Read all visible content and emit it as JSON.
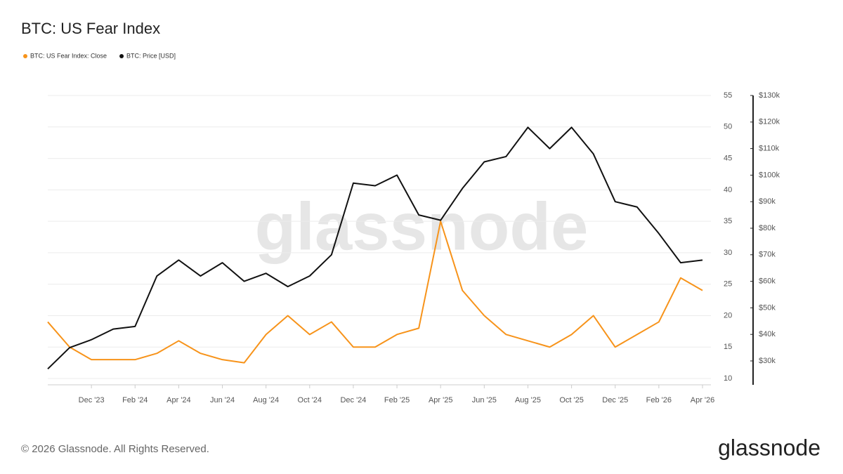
{
  "chart_data": {
    "type": "line",
    "title": "BTC: US Fear Index",
    "watermark": "glassnode",
    "footer": "© 2026 Glassnode. All Rights Reserved.",
    "logo": "glassnode",
    "x": [
      "2023-10",
      "2023-11",
      "2023-12",
      "2024-01",
      "2024-02",
      "2024-03",
      "2024-04",
      "2024-05",
      "2024-06",
      "2024-07",
      "2024-08",
      "2024-09",
      "2024-10",
      "2024-11",
      "2024-12",
      "2025-01",
      "2025-02",
      "2025-03",
      "2025-04",
      "2025-05",
      "2025-06",
      "2025-07",
      "2025-08",
      "2025-09",
      "2025-10",
      "2025-11",
      "2025-12",
      "2026-01",
      "2026-02",
      "2026-03",
      "2026-04"
    ],
    "xlim": [
      "2023-10",
      "2026-04"
    ],
    "xticks": [
      {
        "value": "2023-12",
        "label": "Dec '23"
      },
      {
        "value": "2024-02",
        "label": "Feb '24"
      },
      {
        "value": "2024-04",
        "label": "Apr '24"
      },
      {
        "value": "2024-06",
        "label": "Jun '24"
      },
      {
        "value": "2024-08",
        "label": "Aug '24"
      },
      {
        "value": "2024-10",
        "label": "Oct '24"
      },
      {
        "value": "2024-12",
        "label": "Dec '24"
      },
      {
        "value": "2025-02",
        "label": "Feb '25"
      },
      {
        "value": "2025-04",
        "label": "Apr '25"
      },
      {
        "value": "2025-06",
        "label": "Jun '25"
      },
      {
        "value": "2025-08",
        "label": "Aug '25"
      },
      {
        "value": "2025-10",
        "label": "Oct '25"
      },
      {
        "value": "2025-12",
        "label": "Dec '25"
      },
      {
        "value": "2026-02",
        "label": "Feb '26"
      },
      {
        "value": "2026-04",
        "label": "Apr '26"
      }
    ],
    "ylim": [
      9,
      55
    ],
    "yticks": [
      10,
      15,
      20,
      25,
      30,
      35,
      40,
      45,
      50,
      55
    ],
    "y2lim": [
      21000,
      130000
    ],
    "y2ticks": [
      {
        "value": 30000,
        "label": "$30k"
      },
      {
        "value": 40000,
        "label": "$40k"
      },
      {
        "value": 50000,
        "label": "$50k"
      },
      {
        "value": 60000,
        "label": "$60k"
      },
      {
        "value": 70000,
        "label": "$70k"
      },
      {
        "value": 80000,
        "label": "$80k"
      },
      {
        "value": 90000,
        "label": "$90k"
      },
      {
        "value": 100000,
        "label": "$100k"
      },
      {
        "value": 110000,
        "label": "$110k"
      },
      {
        "value": 120000,
        "label": "$120k"
      },
      {
        "value": 130000,
        "label": "$130k"
      }
    ],
    "grid": true,
    "series": [
      {
        "name": "BTC: US Fear Index: Close",
        "color": "#f7931a",
        "values": [
          19,
          15,
          13,
          13,
          13,
          14,
          16,
          14,
          13,
          12.5,
          17,
          20,
          17,
          19,
          15,
          15,
          17,
          18,
          35,
          24,
          20,
          17,
          16,
          15,
          17,
          20,
          15,
          17,
          19,
          26,
          24
        ]
      },
      {
        "name": "BTC: Price [USD]",
        "color": "#111111",
        "axis": "y2",
        "values": [
          27000,
          35000,
          38000,
          42000,
          43000,
          62000,
          68000,
          62000,
          67000,
          60000,
          63000,
          58000,
          62000,
          70000,
          97000,
          96000,
          100000,
          85000,
          83000,
          95000,
          105000,
          107000,
          118000,
          110000,
          118000,
          108000,
          90000,
          88000,
          78000,
          67000,
          68000
        ]
      }
    ]
  }
}
